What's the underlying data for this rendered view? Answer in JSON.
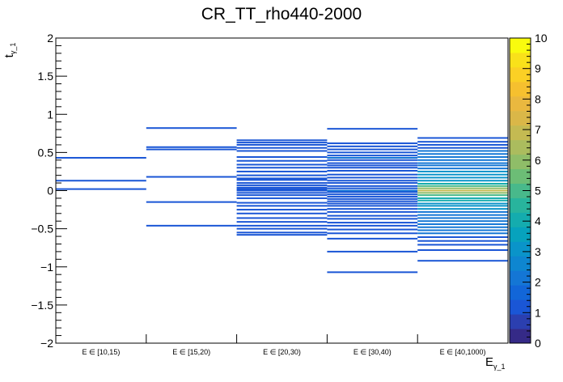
{
  "chart_data": {
    "type": "heatmap",
    "title": "CR_TT_rho440-2000",
    "xlabel": "E",
    "xlabel_sub": "γ_1",
    "ylabel": "t",
    "ylabel_sub": "γ_1",
    "ylim": [
      -2,
      2
    ],
    "y_ticks": [
      "2",
      "1.5",
      "1",
      "0.5",
      "0",
      "−0.5",
      "−1",
      "−1.5",
      "−2"
    ],
    "y_tick_values": [
      2,
      1.5,
      1,
      0.5,
      0,
      -0.5,
      -1,
      -1.5,
      -2
    ],
    "categories": [
      "E ∈ [10,15)",
      "E ∈ [15,20)",
      "E ∈ [20,30)",
      "E ∈ [30,40)",
      "E ∈ [40,1000)"
    ],
    "zlim": [
      0,
      10
    ],
    "z_ticks": [
      "0",
      "1",
      "2",
      "3",
      "4",
      "5",
      "6",
      "7",
      "8",
      "9",
      "10"
    ],
    "palette": [
      "#352a87",
      "#2b3fb0",
      "#1a56d6",
      "#1266d8",
      "#1476d5",
      "#0e86d0",
      "#0a94c9",
      "#07a2bd",
      "#14acae",
      "#28b49d",
      "#48b98b",
      "#6cbd76",
      "#8fbd68",
      "#abbc5e",
      "#c4ba52",
      "#dab748",
      "#eab83f",
      "#f6c02f",
      "#fbd025",
      "#f9e11a",
      "#f9fb0e"
    ],
    "bins": [
      {
        "category": 0,
        "entries": [
          [
            0.43,
            1
          ],
          [
            0.13,
            1
          ],
          [
            0.02,
            1
          ]
        ]
      },
      {
        "category": 1,
        "entries": [
          [
            0.82,
            1
          ],
          [
            0.57,
            1
          ],
          [
            0.54,
            1
          ],
          [
            0.18,
            1
          ],
          [
            -0.15,
            1
          ],
          [
            -0.46,
            1
          ]
        ]
      },
      {
        "category": 2,
        "entries": [
          [
            0.66,
            1
          ],
          [
            0.63,
            1
          ],
          [
            0.6,
            1
          ],
          [
            0.56,
            1
          ],
          [
            0.52,
            1
          ],
          [
            0.44,
            1
          ],
          [
            0.39,
            1
          ],
          [
            0.34,
            1
          ],
          [
            0.3,
            1
          ],
          [
            0.25,
            1
          ],
          [
            0.2,
            1
          ],
          [
            0.16,
            1
          ],
          [
            0.14,
            1
          ],
          [
            0.1,
            1
          ],
          [
            0.07,
            1
          ],
          [
            0.04,
            1
          ],
          [
            0.02,
            1
          ],
          [
            0.0,
            1
          ],
          [
            -0.03,
            1
          ],
          [
            -0.06,
            1
          ],
          [
            -0.1,
            1
          ],
          [
            -0.16,
            1
          ],
          [
            -0.2,
            1
          ],
          [
            -0.25,
            1
          ],
          [
            -0.3,
            1
          ],
          [
            -0.36,
            1
          ],
          [
            -0.41,
            1
          ],
          [
            -0.46,
            1
          ],
          [
            -0.5,
            1
          ],
          [
            -0.55,
            1
          ],
          [
            -0.58,
            1
          ]
        ]
      },
      {
        "category": 3,
        "entries": [
          [
            0.81,
            1
          ],
          [
            0.62,
            1
          ],
          [
            0.58,
            1
          ],
          [
            0.54,
            1
          ],
          [
            0.5,
            1
          ],
          [
            0.46,
            1
          ],
          [
            0.43,
            2
          ],
          [
            0.4,
            1
          ],
          [
            0.36,
            1
          ],
          [
            0.33,
            1
          ],
          [
            0.3,
            1
          ],
          [
            0.26,
            1
          ],
          [
            0.21,
            1
          ],
          [
            0.17,
            1
          ],
          [
            0.13,
            1
          ],
          [
            0.1,
            1
          ],
          [
            0.06,
            1
          ],
          [
            0.03,
            1
          ],
          [
            0.0,
            2
          ],
          [
            -0.02,
            1
          ],
          [
            -0.05,
            1
          ],
          [
            -0.08,
            1
          ],
          [
            -0.11,
            1
          ],
          [
            -0.14,
            1
          ],
          [
            -0.17,
            1
          ],
          [
            -0.2,
            1
          ],
          [
            -0.24,
            1
          ],
          [
            -0.28,
            1
          ],
          [
            -0.33,
            1
          ],
          [
            -0.37,
            1
          ],
          [
            -0.42,
            1
          ],
          [
            -0.46,
            1
          ],
          [
            -0.51,
            1
          ],
          [
            -0.56,
            1
          ],
          [
            -0.63,
            1
          ],
          [
            -0.8,
            1
          ],
          [
            -1.07,
            1
          ]
        ]
      },
      {
        "category": 4,
        "entries": [
          [
            0.69,
            1
          ],
          [
            0.64,
            1
          ],
          [
            0.6,
            1
          ],
          [
            0.56,
            1
          ],
          [
            0.52,
            2
          ],
          [
            0.48,
            2
          ],
          [
            0.44,
            2
          ],
          [
            0.4,
            2
          ],
          [
            0.36,
            2
          ],
          [
            0.33,
            2
          ],
          [
            0.29,
            2
          ],
          [
            0.25,
            3
          ],
          [
            0.21,
            3
          ],
          [
            0.17,
            3
          ],
          [
            0.13,
            3
          ],
          [
            0.09,
            4
          ],
          [
            0.06,
            5
          ],
          [
            0.03,
            6
          ],
          [
            0.0,
            7
          ],
          [
            -0.03,
            6
          ],
          [
            -0.06,
            5
          ],
          [
            -0.1,
            4
          ],
          [
            -0.13,
            4
          ],
          [
            -0.17,
            3
          ],
          [
            -0.2,
            3
          ],
          [
            -0.24,
            3
          ],
          [
            -0.28,
            2
          ],
          [
            -0.32,
            2
          ],
          [
            -0.36,
            2
          ],
          [
            -0.4,
            2
          ],
          [
            -0.44,
            2
          ],
          [
            -0.48,
            2
          ],
          [
            -0.52,
            2
          ],
          [
            -0.56,
            2
          ],
          [
            -0.61,
            1
          ],
          [
            -0.66,
            1
          ],
          [
            -0.71,
            1
          ],
          [
            -0.78,
            1
          ],
          [
            -0.92,
            1
          ]
        ]
      }
    ]
  }
}
